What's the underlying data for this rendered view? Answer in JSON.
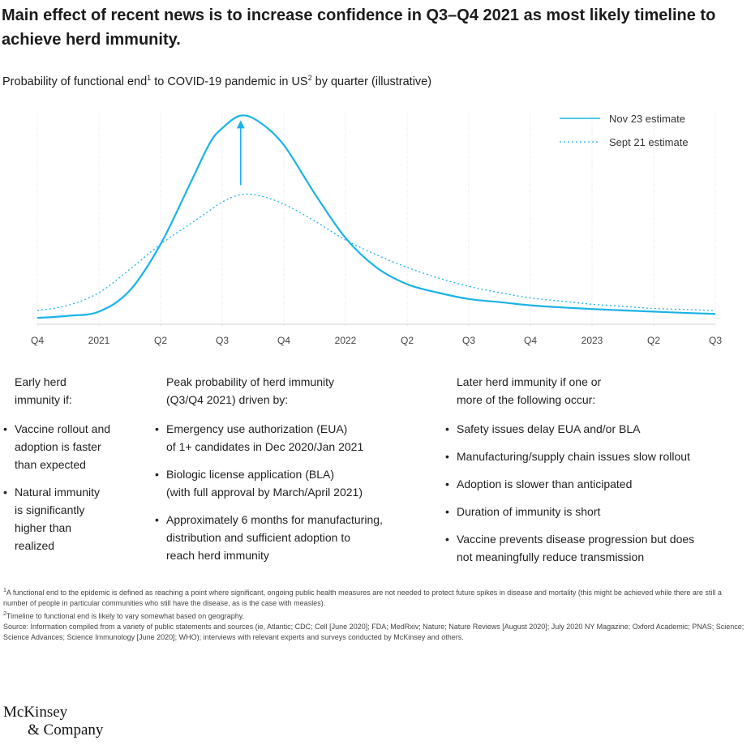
{
  "headline": "Main effect of recent news is to increase confidence in Q3–Q4 2021 as most likely timeline to achieve herd immunity.",
  "subtitle_parts": {
    "a": "Probability of functional end",
    "sup1": "1",
    "b": " to COVID-19 pandemic in US",
    "sup2": "2",
    "c": " by quarter (illustrative)"
  },
  "chart_data": {
    "type": "line",
    "title": "",
    "xlabel": "",
    "ylabel": "",
    "categories": [
      "Q4",
      "2021",
      "Q2",
      "Q3",
      "Q4",
      "2022",
      "Q2",
      "Q3",
      "Q4",
      "2023",
      "Q2",
      "Q3"
    ],
    "x": [
      0,
      0.5,
      1,
      1.5,
      2,
      2.5,
      2.8,
      3,
      3.3,
      3.6,
      4,
      4.5,
      5,
      5.5,
      6,
      6.5,
      7,
      7.5,
      8,
      8.5,
      9,
      9.5,
      10,
      10.5,
      11
    ],
    "series": [
      {
        "name": "Nov 23 estimate",
        "style": "solid",
        "color": "#1ab3e6",
        "values": [
          3,
          4,
          6,
          16,
          38,
          68,
          86,
          93,
          99,
          96,
          85,
          62,
          41,
          27,
          19,
          15,
          12,
          10.5,
          9,
          8,
          7.2,
          6.6,
          6,
          5.4,
          4.9
        ]
      },
      {
        "name": "Sept 21 estimate",
        "style": "dotted",
        "color": "#1ab3e6",
        "values": [
          6.5,
          9,
          15,
          26,
          38,
          48,
          54,
          58,
          61.5,
          61,
          57,
          49,
          40,
          33,
          27,
          22,
          18,
          15,
          12.5,
          11,
          9.5,
          8.5,
          7.5,
          7,
          6.5
        ]
      }
    ],
    "annotation_arrow": {
      "x": 3.3,
      "from": 66,
      "to": 96
    },
    "ylim": [
      0,
      100
    ],
    "grid": "vertical ticks only",
    "legend": "top-right"
  },
  "columns": {
    "left": {
      "heading": "Early herd\nimmunity if:",
      "items": [
        "Vaccine rollout and\nadoption is faster\nthan expected",
        "Natural immunity\nis significantly\nhigher than\nrealized"
      ]
    },
    "middle": {
      "heading": "Peak probability of herd immunity\n(Q3/Q4 2021) driven by:",
      "items": [
        "Emergency use authorization (EUA)\nof 1+ candidates in Dec 2020/Jan 2021",
        "Biologic license application (BLA)\n(with full approval by March/April 2021)",
        "Approximately 6 months for manufacturing,\ndistribution and sufficient adoption to\nreach herd immunity"
      ]
    },
    "right": {
      "heading": "Later herd immunity if one or\nmore of the following occur:",
      "items": [
        "Safety issues delay EUA and/or BLA",
        "Manufacturing/supply chain issues slow rollout",
        "Adoption is slower than anticipated",
        "Duration of immunity is short",
        "Vaccine prevents disease progression but does\nnot meaningfully reduce transmission"
      ]
    },
    "bullet": "•"
  },
  "notes": {
    "n1_sup": "1",
    "n1": "A functional end to the epidemic is defined as reaching a point where significant, ongoing public health measures are not needed to protect future spikes in disease and mortality (this might be achieved while there are still a number of people in particular communities who still have the disease, as is the case with measles).",
    "n2_sup": "2",
    "n2": "Timeline to functional end is likely to vary somewhat based on geography.",
    "source": "Source: Information compiled from a variety of public statements and sources (ie, Atlantic; CDC; Cell [June 2020]; FDA; MedRxiv; Nature; Nature Reviews [August 2020]; July 2020 NY Magazine; Oxford Academic; PNAS; Science; Science Advances; Science Immunology [June 2020]; WHO); interviews with relevant experts and surveys conducted by McKinsey and others."
  },
  "logo": {
    "line1": "McKinsey",
    "line2": "& Company"
  }
}
